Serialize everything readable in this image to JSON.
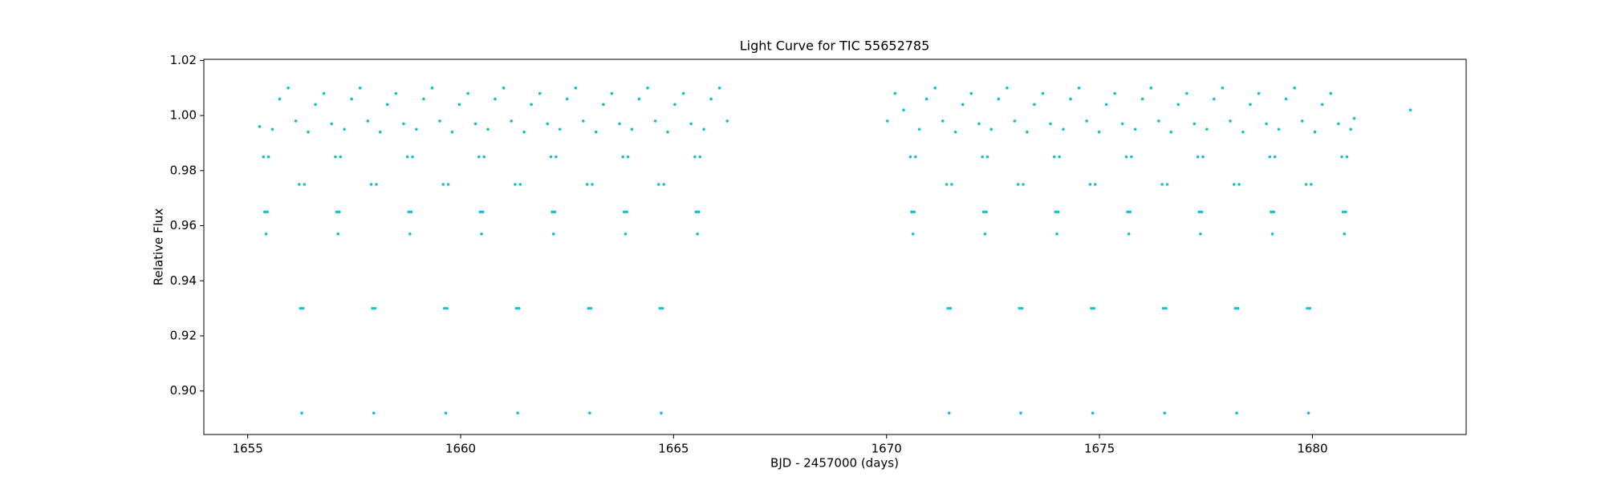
{
  "chart_data": {
    "type": "scatter",
    "title": "Light Curve for TIC 55652785",
    "x_label": "BJD - 2457000 (days)",
    "y_label": "Relative Flux",
    "color": "#17becf",
    "grid": false,
    "xlim": [
      1653.97,
      1683.61
    ],
    "xticks": [
      1655,
      1660,
      1665,
      1670,
      1675,
      1680
    ],
    "ylim": [
      0.8842,
      1.0204
    ],
    "yticks": [
      {
        "value": 0.9,
        "label": "0.90"
      },
      0.92,
      0.94,
      0.96,
      0.98,
      {
        "value": 1.0,
        "label": "1.00"
      },
      1.02
    ],
    "x": [
      1655.28,
      1655.37,
      1655.4,
      1655.43,
      1655.46,
      1655.49,
      1655.58,
      1655.75,
      1655.95,
      1656.13,
      1656.21,
      1656.24,
      1656.27,
      1656.3,
      1656.33,
      1656.42,
      1656.59,
      1656.79,
      1656.97,
      1657.06,
      1657.09,
      1657.12,
      1657.15,
      1657.18,
      1657.27,
      1657.44,
      1657.64,
      1657.82,
      1657.9,
      1657.93,
      1657.96,
      1657.99,
      1658.02,
      1658.11,
      1658.28,
      1658.48,
      1658.66,
      1658.75,
      1658.78,
      1658.81,
      1658.84,
      1658.87,
      1658.96,
      1659.13,
      1659.33,
      1659.51,
      1659.59,
      1659.62,
      1659.65,
      1659.68,
      1659.71,
      1659.8,
      1659.97,
      1660.17,
      1660.35,
      1660.43,
      1660.46,
      1660.49,
      1660.52,
      1660.55,
      1660.64,
      1660.81,
      1661.01,
      1661.19,
      1661.28,
      1661.31,
      1661.34,
      1661.37,
      1661.4,
      1661.49,
      1661.66,
      1661.86,
      1662.04,
      1662.12,
      1662.15,
      1662.18,
      1662.21,
      1662.24,
      1662.33,
      1662.5,
      1662.7,
      1662.88,
      1662.97,
      1663.0,
      1663.03,
      1663.06,
      1663.09,
      1663.18,
      1663.35,
      1663.55,
      1663.73,
      1663.81,
      1663.84,
      1663.87,
      1663.9,
      1663.93,
      1664.02,
      1664.19,
      1664.39,
      1664.57,
      1664.65,
      1664.68,
      1664.71,
      1664.74,
      1664.77,
      1664.86,
      1665.03,
      1665.23,
      1665.41,
      1665.5,
      1665.53,
      1665.56,
      1665.59,
      1665.62,
      1665.71,
      1665.88,
      1666.08,
      1666.26,
      1670.02,
      1670.2,
      1670.4,
      1670.56,
      1670.59,
      1670.62,
      1670.65,
      1670.68,
      1670.77,
      1670.94,
      1671.14,
      1671.32,
      1671.41,
      1671.44,
      1671.47,
      1671.5,
      1671.53,
      1671.62,
      1671.79,
      1671.99,
      1672.17,
      1672.25,
      1672.28,
      1672.31,
      1672.34,
      1672.37,
      1672.46,
      1672.63,
      1672.83,
      1673.01,
      1673.09,
      1673.12,
      1673.15,
      1673.18,
      1673.21,
      1673.3,
      1673.47,
      1673.67,
      1673.85,
      1673.94,
      1673.97,
      1674.0,
      1674.03,
      1674.06,
      1674.15,
      1674.32,
      1674.52,
      1674.7,
      1674.78,
      1674.81,
      1674.84,
      1674.87,
      1674.9,
      1674.99,
      1675.16,
      1675.36,
      1675.54,
      1675.63,
      1675.66,
      1675.69,
      1675.72,
      1675.75,
      1675.84,
      1676.01,
      1676.21,
      1676.39,
      1676.47,
      1676.5,
      1676.53,
      1676.56,
      1676.59,
      1676.68,
      1676.85,
      1677.05,
      1677.23,
      1677.31,
      1677.34,
      1677.37,
      1677.4,
      1677.43,
      1677.52,
      1677.69,
      1677.89,
      1678.07,
      1678.16,
      1678.19,
      1678.22,
      1678.25,
      1678.28,
      1678.37,
      1678.54,
      1678.74,
      1678.92,
      1679.0,
      1679.03,
      1679.06,
      1679.09,
      1679.12,
      1679.21,
      1679.38,
      1679.58,
      1679.76,
      1679.85,
      1679.88,
      1679.91,
      1679.94,
      1679.97,
      1680.06,
      1680.23,
      1680.43,
      1680.61,
      1680.69,
      1680.72,
      1680.75,
      1680.78,
      1680.81,
      1680.9,
      1680.98,
      1682.3
    ],
    "values": [
      0.996,
      0.985,
      0.965,
      0.957,
      0.965,
      0.985,
      0.995,
      1.006,
      1.01,
      0.998,
      0.975,
      0.93,
      0.892,
      0.93,
      0.975,
      0.994,
      1.004,
      1.008,
      0.997,
      0.985,
      0.965,
      0.957,
      0.965,
      0.985,
      0.995,
      1.006,
      1.01,
      0.998,
      0.975,
      0.93,
      0.892,
      0.93,
      0.975,
      0.994,
      1.004,
      1.008,
      0.997,
      0.985,
      0.965,
      0.957,
      0.965,
      0.985,
      0.995,
      1.006,
      1.01,
      0.998,
      0.975,
      0.93,
      0.892,
      0.93,
      0.975,
      0.994,
      1.004,
      1.008,
      0.997,
      0.985,
      0.965,
      0.957,
      0.965,
      0.985,
      0.995,
      1.006,
      1.01,
      0.998,
      0.975,
      0.93,
      0.892,
      0.93,
      0.975,
      0.994,
      1.004,
      1.008,
      0.997,
      0.985,
      0.965,
      0.957,
      0.965,
      0.985,
      0.995,
      1.006,
      1.01,
      0.998,
      0.975,
      0.93,
      0.892,
      0.93,
      0.975,
      0.994,
      1.004,
      1.008,
      0.997,
      0.985,
      0.965,
      0.957,
      0.965,
      0.985,
      0.995,
      1.006,
      1.01,
      0.998,
      0.975,
      0.93,
      0.892,
      0.93,
      0.975,
      0.994,
      1.004,
      1.008,
      0.997,
      0.985,
      0.965,
      0.957,
      0.965,
      0.985,
      0.995,
      1.006,
      1.01,
      0.998,
      0.998,
      1.008,
      1.002,
      0.985,
      0.965,
      0.957,
      0.965,
      0.985,
      0.995,
      1.006,
      1.01,
      0.998,
      0.975,
      0.93,
      0.892,
      0.93,
      0.975,
      0.994,
      1.004,
      1.008,
      0.997,
      0.985,
      0.965,
      0.957,
      0.965,
      0.985,
      0.995,
      1.006,
      1.01,
      0.998,
      0.975,
      0.93,
      0.892,
      0.93,
      0.975,
      0.994,
      1.004,
      1.008,
      0.997,
      0.985,
      0.965,
      0.957,
      0.965,
      0.985,
      0.995,
      1.006,
      1.01,
      0.998,
      0.975,
      0.93,
      0.892,
      0.93,
      0.975,
      0.994,
      1.004,
      1.008,
      0.997,
      0.985,
      0.965,
      0.957,
      0.965,
      0.985,
      0.995,
      1.006,
      1.01,
      0.998,
      0.975,
      0.93,
      0.892,
      0.93,
      0.975,
      0.994,
      1.004,
      1.008,
      0.997,
      0.985,
      0.965,
      0.957,
      0.965,
      0.985,
      0.995,
      1.006,
      1.01,
      0.998,
      0.975,
      0.93,
      0.892,
      0.93,
      0.975,
      0.994,
      1.004,
      1.008,
      0.997,
      0.985,
      0.965,
      0.957,
      0.965,
      0.985,
      0.995,
      1.006,
      1.01,
      0.998,
      0.975,
      0.93,
      0.892,
      0.93,
      0.975,
      0.994,
      1.004,
      1.008,
      0.997,
      0.985,
      0.965,
      0.957,
      0.965,
      0.985,
      0.995,
      0.999,
      1.002
    ]
  }
}
